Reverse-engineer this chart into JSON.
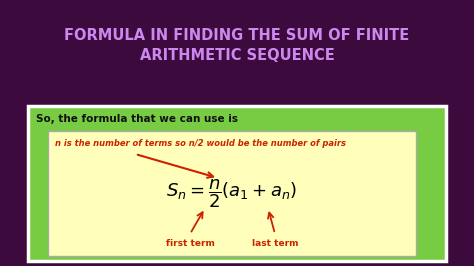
{
  "bg_color": "#3d0a3d",
  "title_line1": "FORMULA IN FINDING THE SUM OF FINITE",
  "title_line2": "ARITHMETIC SEQUENCE",
  "title_color": "#cc88ee",
  "outer_box_facecolor": "#77cc44",
  "outer_box_edgecolor": "#ffffff",
  "inner_box_facecolor": "#ffffbb",
  "inner_box_edgecolor": "#aaaaaa",
  "label_text": "So, the formula that we can use is",
  "annotation_text": "n is the number of terms so n/2 would be the number of pairs",
  "annotation_color": "#cc2200",
  "first_term_label": "first term",
  "last_term_label": "last term",
  "arrow_color": "#cc2200",
  "formula_color": "#000000"
}
